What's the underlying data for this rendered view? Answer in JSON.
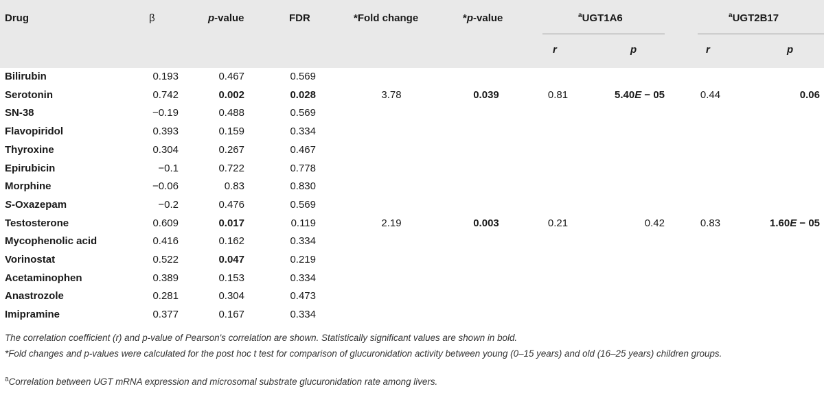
{
  "header": {
    "drug": "Drug",
    "beta": "β",
    "pvalue_p": "p",
    "pvalue_rest": "-value",
    "fdr": "FDR",
    "fold_change": "*Fold change",
    "star_pvalue_star": "*",
    "star_pvalue_p": "p",
    "star_pvalue_rest": "-value",
    "ugt1a6_sup": "a",
    "ugt1a6": "UGT1A6",
    "ugt2b17_sup": "a",
    "ugt2b17": "UGT2B17",
    "r": "r",
    "p": "p"
  },
  "rows": [
    {
      "drug": "Bilirubin",
      "beta": "0.193",
      "p": "0.467",
      "fdr": "0.569"
    },
    {
      "drug": "Serotonin",
      "beta": "0.742",
      "p": "0.002",
      "fdr": "0.028",
      "fold": "3.78",
      "p2": "0.039",
      "r1": "0.81",
      "p1a": "5.40",
      "p1b": "E",
      "p1c": " − 05",
      "r2": "0.44",
      "p3": "0.06"
    },
    {
      "drug": "SN-38",
      "beta": "−0.19",
      "p": "0.488",
      "fdr": "0.569"
    },
    {
      "drug": "Flavopiridol",
      "beta": "0.393",
      "p": "0.159",
      "fdr": "0.334"
    },
    {
      "drug": "Thyroxine",
      "beta": "0.304",
      "p": "0.267",
      "fdr": "0.467"
    },
    {
      "drug": "Epirubicin",
      "beta": "−0.1",
      "p": "0.722",
      "fdr": "0.778"
    },
    {
      "drug": "Morphine",
      "beta": "−0.06",
      "p": "0.83",
      "fdr": "0.830"
    },
    {
      "drug_prefix": "S",
      "drug": "-Oxazepam",
      "beta": "−0.2",
      "p": "0.476",
      "fdr": "0.569"
    },
    {
      "drug": "Testosterone",
      "beta": "0.609",
      "p": "0.017",
      "fdr": "0.119",
      "fold": "2.19",
      "p2": "0.003",
      "r1": "0.21",
      "p1": "0.42",
      "r2": "0.83",
      "p3a": "1.60",
      "p3b": "E",
      "p3c": " − 05"
    },
    {
      "drug": "Mycophenolic acid",
      "beta": "0.416",
      "p": "0.162",
      "fdr": "0.334"
    },
    {
      "drug": "Vorinostat",
      "beta": "0.522",
      "p": "0.047",
      "fdr": "0.219"
    },
    {
      "drug": "Acetaminophen",
      "beta": "0.389",
      "p": "0.153",
      "fdr": "0.334"
    },
    {
      "drug": "Anastrozole",
      "beta": "0.281",
      "p": "0.304",
      "fdr": "0.473"
    },
    {
      "drug": "Imipramine",
      "beta": "0.377",
      "p": "0.167",
      "fdr": "0.334"
    }
  ],
  "footnotes": {
    "note1": "The correlation coefficient (r) and p-value of Pearson's correlation are shown. Statistically significant values are shown in bold.",
    "note2": "*Fold changes and p-values were calculated for the post hoc t test for comparison of glucuronidation activity between young (0–15 years) and old (16–25 years) children groups.",
    "note3_sup": "a",
    "note3": "Correlation between UGT mRNA expression and microsomal substrate glucuronidation rate among livers."
  }
}
